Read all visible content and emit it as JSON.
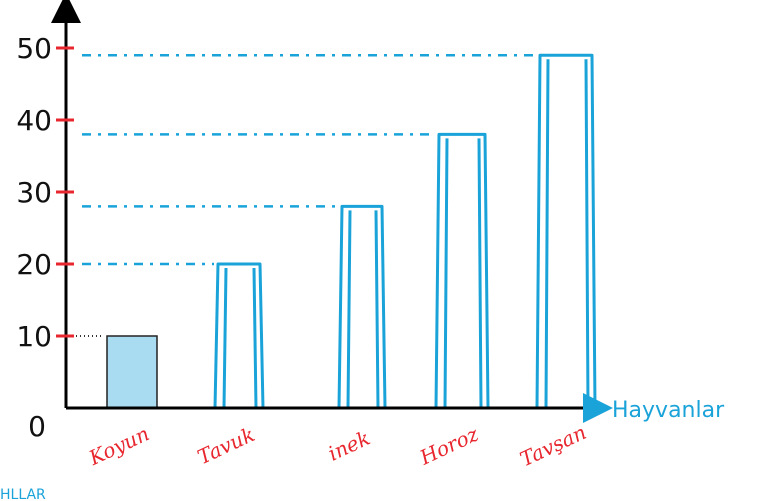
{
  "colors": {
    "axis": "#000000",
    "tick": "#e8262e",
    "bar_drawn": "#1aa3d9",
    "bar_filled": "#a9dcf0",
    "bar_filled_stroke": "#222222",
    "category_label": "#e8262e",
    "axis_title": "#1aa3d9",
    "guide_dots": "#1aa3d9"
  },
  "chart_data": {
    "type": "bar",
    "categories": [
      "Koyun",
      "Tavuk",
      "inek",
      "Horoz",
      "Tavşan"
    ],
    "values": [
      10,
      20,
      28,
      38,
      49
    ],
    "yticks": [
      0,
      10,
      20,
      30,
      40,
      50
    ],
    "ylim": [
      0,
      50
    ],
    "xlabel": "Hayvanlar",
    "ylabel": "",
    "title": "",
    "grid": false
  },
  "footer": {
    "text": "HLLAR"
  }
}
